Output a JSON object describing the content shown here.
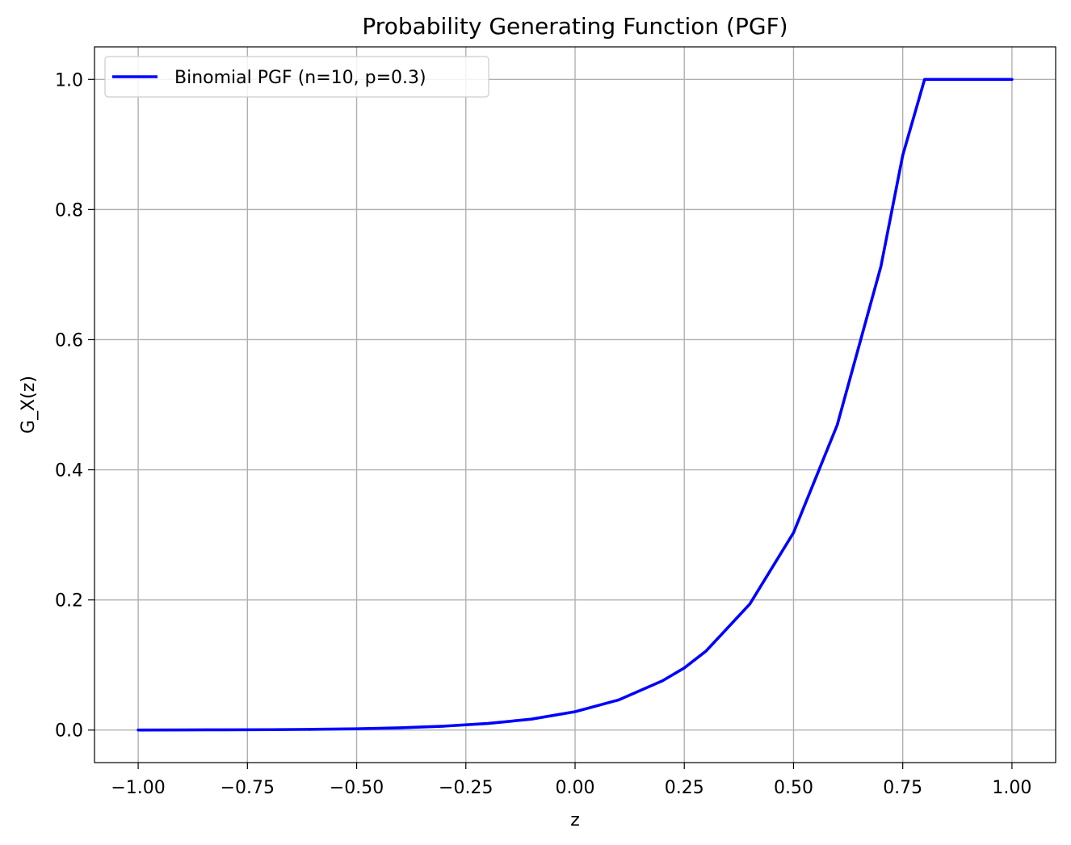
{
  "chart_data": {
    "type": "line",
    "title": "Probability Generating Function (PGF)",
    "xlabel": "z",
    "ylabel": "G_X(z)",
    "xlim": [
      -1.1,
      1.1
    ],
    "ylim": [
      -0.05,
      1.05
    ],
    "grid": true,
    "legend_position": "top-left",
    "x_ticks": [
      {
        "value": -1.0,
        "label": "−1.00"
      },
      {
        "value": -0.75,
        "label": "−0.75"
      },
      {
        "value": -0.5,
        "label": "−0.50"
      },
      {
        "value": -0.25,
        "label": "−0.25"
      },
      {
        "value": 0.0,
        "label": "0.00"
      },
      {
        "value": 0.25,
        "label": "0.25"
      },
      {
        "value": 0.5,
        "label": "0.50"
      },
      {
        "value": 0.75,
        "label": "0.75"
      },
      {
        "value": 1.0,
        "label": "1.00"
      }
    ],
    "y_ticks": [
      {
        "value": 0.0,
        "label": "0.0"
      },
      {
        "value": 0.2,
        "label": "0.2"
      },
      {
        "value": 0.4,
        "label": "0.4"
      },
      {
        "value": 0.6,
        "label": "0.6"
      },
      {
        "value": 0.8,
        "label": "0.8"
      },
      {
        "value": 1.0,
        "label": "1.0"
      }
    ],
    "series": [
      {
        "name": "Binomial PGF (n=10, p=0.3)",
        "color": "#0000ff",
        "x": [
          -1.0,
          -0.9,
          -0.8,
          -0.7,
          -0.6,
          -0.5,
          -0.4,
          -0.3,
          -0.2,
          -0.1,
          0.0,
          0.1,
          0.2,
          0.25,
          0.3,
          0.4,
          0.5,
          0.6,
          0.7,
          0.75,
          0.8,
          0.85,
          0.9,
          0.95,
          1.0
        ],
        "y": [
          0.0001,
          0.0002,
          0.0004,
          0.0006,
          0.0011,
          0.002,
          0.0035,
          0.006,
          0.0101,
          0.0168,
          0.0282,
          0.0464,
          0.0757,
          0.0955,
          0.1216,
          0.1937,
          0.3033,
          0.4688,
          0.7125,
          0.8833,
          1.0,
          1.0,
          1.0,
          1.0,
          1.0
        ]
      }
    ]
  }
}
